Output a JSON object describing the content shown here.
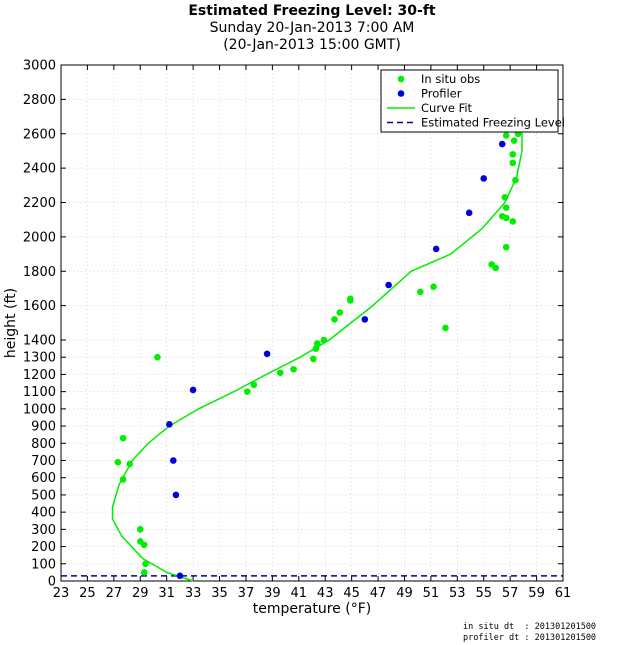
{
  "titles": {
    "main": "Estimated Freezing Level: 30-ft",
    "line2": "Sunday 20-Jan-2013  7:00 AM",
    "line3": "(20-Jan-2013 15:00 GMT)"
  },
  "footer": {
    "insitu": "in situ dt  : 201301201500",
    "profiler": "profiler dt : 201301201500"
  },
  "colors": {
    "insitu": "#00ee00",
    "profiler": "#0000dd",
    "curve": "#00ee00",
    "freezing": "#0000aa"
  },
  "chart_data": {
    "type": "scatter",
    "xlabel": "temperature (°F)",
    "ylabel": "height (ft)",
    "xlim": [
      23,
      61
    ],
    "ylim": [
      0,
      3000
    ],
    "x_ticks": [
      23,
      25,
      27,
      29,
      31,
      33,
      35,
      37,
      39,
      41,
      43,
      45,
      47,
      49,
      51,
      53,
      55,
      57,
      59,
      61
    ],
    "y_ticks": [
      0,
      100,
      200,
      300,
      400,
      500,
      600,
      700,
      800,
      900,
      1000,
      1100,
      1200,
      1300,
      1400,
      1600,
      1800,
      2000,
      2200,
      2400,
      2600,
      2800,
      3000
    ],
    "grid": true,
    "legend_position": "top-right",
    "legend": [
      "In situ obs",
      "Profiler",
      "Curve Fit",
      "Estimated Freezing Level"
    ],
    "freezing_level_ft": 30,
    "series": [
      {
        "name": "In situ obs",
        "points": [
          [
            29.3,
            50
          ],
          [
            29.4,
            100
          ],
          [
            29.3,
            210
          ],
          [
            29.0,
            230
          ],
          [
            29.0,
            300
          ],
          [
            27.7,
            590
          ],
          [
            28.2,
            680
          ],
          [
            27.3,
            690
          ],
          [
            27.7,
            830
          ],
          [
            30.3,
            1300
          ],
          [
            37.1,
            1100
          ],
          [
            37.6,
            1140
          ],
          [
            39.6,
            1210
          ],
          [
            40.6,
            1230
          ],
          [
            42.1,
            1290
          ],
          [
            42.3,
            1350
          ],
          [
            42.4,
            1380
          ],
          [
            42.9,
            1400
          ],
          [
            43.7,
            1520
          ],
          [
            44.1,
            1560
          ],
          [
            44.9,
            1630
          ],
          [
            44.9,
            1640
          ],
          [
            50.2,
            1680
          ],
          [
            51.2,
            1710
          ],
          [
            52.1,
            1470
          ],
          [
            55.6,
            1840
          ],
          [
            55.9,
            1820
          ],
          [
            56.4,
            2120
          ],
          [
            56.7,
            1940
          ],
          [
            56.6,
            2230
          ],
          [
            56.7,
            2170
          ],
          [
            56.7,
            2110
          ],
          [
            57.2,
            2090
          ],
          [
            57.2,
            2430
          ],
          [
            57.2,
            2480
          ],
          [
            57.4,
            2330
          ],
          [
            57.6,
            2600
          ],
          [
            57.3,
            2560
          ],
          [
            56.7,
            2590
          ]
        ]
      },
      {
        "name": "Profiler",
        "points": [
          [
            32.0,
            30
          ],
          [
            31.7,
            500
          ],
          [
            31.5,
            700
          ],
          [
            31.2,
            910
          ],
          [
            33.0,
            1110
          ],
          [
            38.6,
            1320
          ],
          [
            46.0,
            1520
          ],
          [
            47.8,
            1720
          ],
          [
            51.4,
            1930
          ],
          [
            53.9,
            2140
          ],
          [
            55.0,
            2340
          ],
          [
            56.4,
            2540
          ]
        ]
      },
      {
        "name": "Curve Fit",
        "points": [
          [
            33.0,
            0
          ],
          [
            31.0,
            50
          ],
          [
            29.2,
            130
          ],
          [
            27.6,
            260
          ],
          [
            26.9,
            360
          ],
          [
            26.9,
            430
          ],
          [
            27.4,
            560
          ],
          [
            28.4,
            700
          ],
          [
            29.6,
            800
          ],
          [
            31.2,
            900
          ],
          [
            33.4,
            1000
          ],
          [
            36.1,
            1100
          ],
          [
            38.3,
            1190
          ],
          [
            41.1,
            1300
          ],
          [
            43.3,
            1400
          ],
          [
            46.6,
            1600
          ],
          [
            49.5,
            1800
          ],
          [
            52.5,
            1900
          ],
          [
            54.9,
            2050
          ],
          [
            56.6,
            2200
          ],
          [
            57.5,
            2350
          ],
          [
            57.9,
            2500
          ],
          [
            57.9,
            2600
          ],
          [
            57.4,
            2650
          ]
        ]
      }
    ]
  }
}
